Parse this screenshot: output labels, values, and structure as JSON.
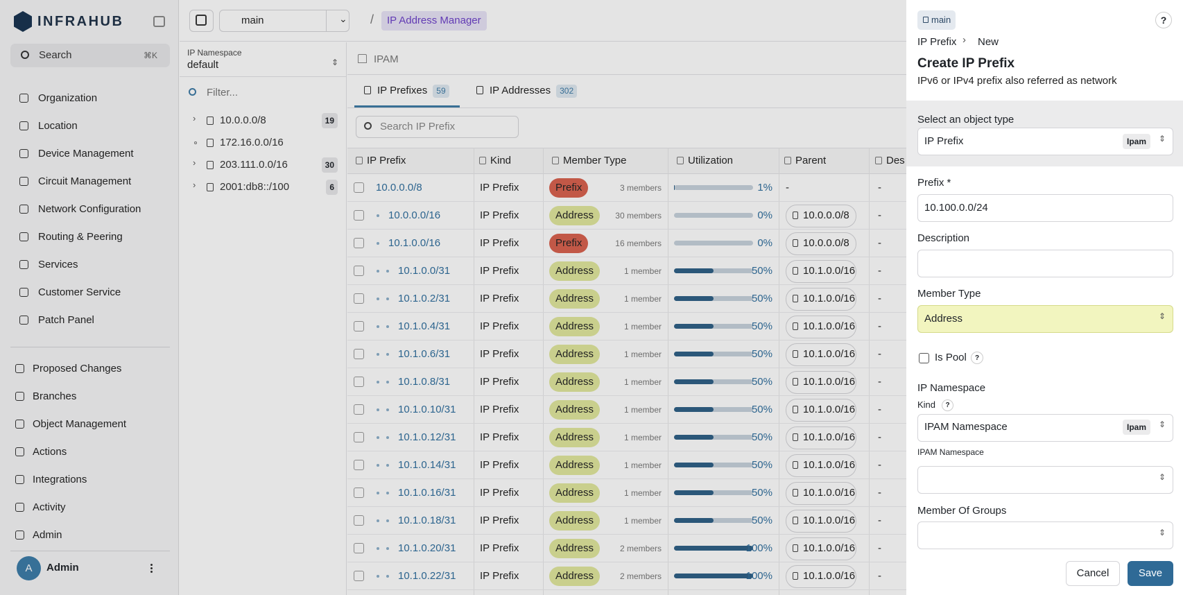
{
  "sidebar": {
    "logo": "INFRAHUB",
    "search": "Search",
    "shortcut": "⌘K",
    "nav": [
      "Organization",
      "Location",
      "Device Management",
      "Circuit Management",
      "Network Configuration",
      "Routing & Peering",
      "Services",
      "Customer Service",
      "Patch Panel"
    ],
    "nav2": [
      "Proposed Changes",
      "Branches",
      "Object Management",
      "Actions",
      "Integrations",
      "Activity",
      "Admin"
    ],
    "user": {
      "initial": "A",
      "name": "Admin"
    }
  },
  "topbar": {
    "branch": "main",
    "breadcrumb": "IP Address Manager"
  },
  "namespace": {
    "label": "IP Namespace",
    "value": "default",
    "filter": "Filter...",
    "tree": [
      {
        "label": "10.0.0.0/8",
        "count": 19
      },
      {
        "label": "172.16.0.0/16"
      },
      {
        "label": "203.111.0.0/16",
        "count": 30
      },
      {
        "label": "2001:db8::/100",
        "count": 6
      }
    ]
  },
  "ipam": {
    "title": "IPAM",
    "tabs": [
      {
        "label": "IP Prefixes",
        "count": 59
      },
      {
        "label": "IP Addresses",
        "count": 302
      }
    ],
    "search": "Search IP Prefix",
    "columns": [
      "IP Prefix",
      "Kind",
      "Member Type",
      "Utilization",
      "Parent",
      "Des"
    ],
    "rows": [
      [
        "10.0.0.0/8",
        "IP Prefix",
        "Prefix",
        "3 members",
        {
          "value": 1,
          "label": "1%"
        },
        "-",
        "-"
      ],
      [
        "10.0.0.0/16",
        "IP Prefix",
        "Address",
        "30 members",
        {
          "value": 0,
          "label": "0%"
        },
        "10.0.0.0/8",
        "-"
      ],
      [
        "10.1.0.0/16",
        "IP Prefix",
        "Prefix",
        "16 members",
        {
          "value": 0,
          "label": "0%"
        },
        "10.0.0.0/8",
        "-"
      ],
      [
        "10.1.0.0/31",
        "IP Prefix",
        "Address",
        "1 member",
        {
          "value": 50,
          "label": "50%"
        },
        "10.1.0.0/16",
        "-"
      ],
      [
        "10.1.0.2/31",
        "IP Prefix",
        "Address",
        "1 member",
        {
          "value": 50,
          "label": "50%"
        },
        "10.1.0.0/16",
        "-"
      ],
      [
        "10.1.0.4/31",
        "IP Prefix",
        "Address",
        "1 member",
        {
          "value": 50,
          "label": "50%"
        },
        "10.1.0.0/16",
        "-"
      ],
      [
        "10.1.0.6/31",
        "IP Prefix",
        "Address",
        "1 member",
        {
          "value": 50,
          "label": "50%"
        },
        "10.1.0.0/16",
        "-"
      ],
      [
        "10.1.0.8/31",
        "IP Prefix",
        "Address",
        "1 member",
        {
          "value": 50,
          "label": "50%"
        },
        "10.1.0.0/16",
        "-"
      ],
      [
        "10.1.0.10/31",
        "IP Prefix",
        "Address",
        "1 member",
        {
          "value": 50,
          "label": "50%"
        },
        "10.1.0.0/16",
        "-"
      ],
      [
        "10.1.0.12/31",
        "IP Prefix",
        "Address",
        "1 member",
        {
          "value": 50,
          "label": "50%"
        },
        "10.1.0.0/16",
        "-"
      ],
      [
        "10.1.0.14/31",
        "IP Prefix",
        "Address",
        "1 member",
        {
          "value": 50,
          "label": "50%"
        },
        "10.1.0.0/16",
        "-"
      ],
      [
        "10.1.0.16/31",
        "IP Prefix",
        "Address",
        "1 member",
        {
          "value": 50,
          "label": "50%"
        },
        "10.1.0.0/16",
        "-"
      ],
      [
        "10.1.0.18/31",
        "IP Prefix",
        "Address",
        "1 member",
        {
          "value": 50,
          "label": "50%"
        },
        "10.1.0.0/16",
        "-"
      ],
      [
        "10.1.0.20/31",
        "IP Prefix",
        "Address",
        "2 members",
        {
          "value": 100,
          "label": "100%"
        },
        "10.1.0.0/16",
        "-"
      ],
      [
        "10.1.0.22/31",
        "IP Prefix",
        "Address",
        "2 members",
        {
          "value": 100,
          "label": "100%"
        },
        "10.1.0.0/16",
        "-"
      ]
    ]
  },
  "panel": {
    "branch": "main",
    "help": "?",
    "breadcrumb": [
      "IP Prefix",
      "New"
    ],
    "title": "Create IP Prefix",
    "subtitle": "IPv6 or IPv4 prefix also referred as network",
    "object_type": {
      "label": "Select an object type",
      "value": "IP Prefix",
      "tag": "Ipam"
    },
    "prefix": {
      "label": "Prefix *",
      "value": "10.100.0.0/24"
    },
    "description": {
      "label": "Description"
    },
    "member_type": {
      "label": "Member Type",
      "value": "Address"
    },
    "is_pool": {
      "label": "Is Pool",
      "help": "?"
    },
    "ip_namespace": {
      "title": "IP Namespace",
      "kind_label": "Kind",
      "kind_help": "?",
      "kind_value": "IPAM Namespace",
      "kind_tag": "Ipam",
      "label": "IPAM Namespace"
    },
    "groups": {
      "label": "Member Of Groups"
    },
    "buttons": [
      "Cancel",
      "Save"
    ]
  }
}
